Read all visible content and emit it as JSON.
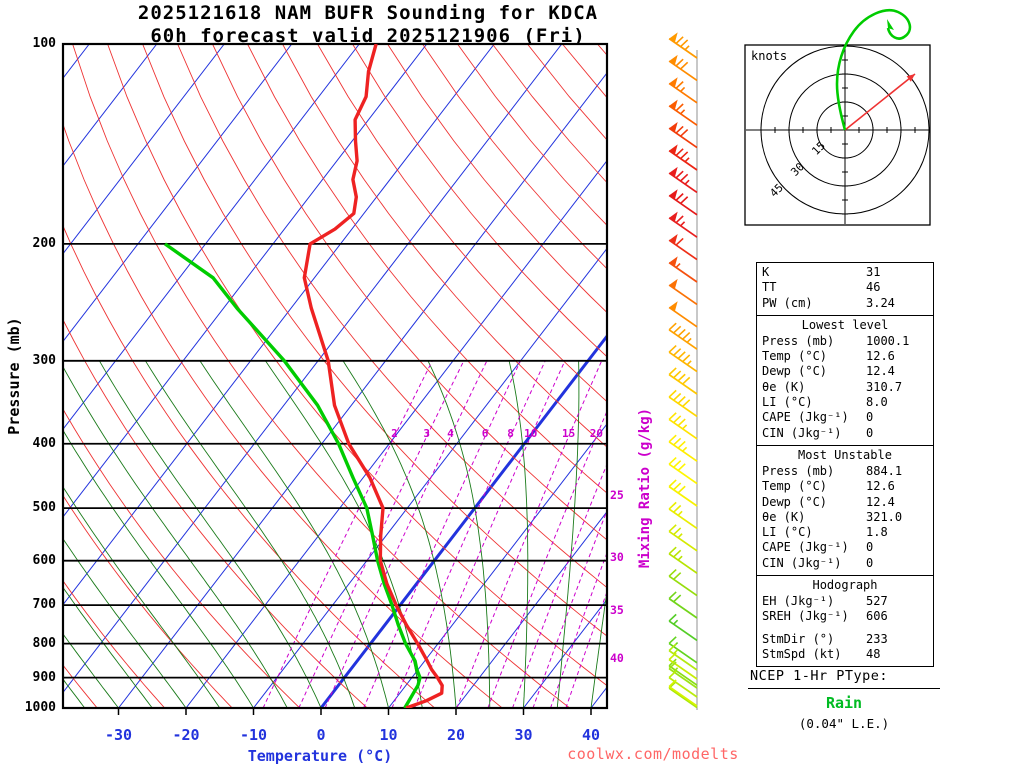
{
  "title": {
    "line1": "2025121618 NAM BUFR Sounding for KDCA",
    "line2": "60h forecast valid 2025121906 (Fri)"
  },
  "axes": {
    "pressure_label": "Pressure (mb)",
    "pressure_ticks": [
      100,
      200,
      300,
      400,
      500,
      600,
      700,
      800,
      900,
      1000
    ],
    "temp_label": "Temperature (°C)",
    "temp_ticks": [
      -30,
      -20,
      -10,
      0,
      10,
      20,
      30,
      40
    ],
    "mixing_ratio_label": "Mixing Ratio (g/kg)",
    "mixing_ratio_inline_labels": [
      2,
      3,
      4,
      6,
      8,
      10,
      15,
      20
    ],
    "mixing_ratio_right_labels": [
      25,
      30,
      35,
      40
    ]
  },
  "chart_data": {
    "type": "skewt_log_p_sounding",
    "title": "2025121618 NAM BUFR Sounding for KDCA — 60h forecast valid 2025121906 (Fri)",
    "xlabel": "Temperature (°C)",
    "ylabel": "Pressure (mb)",
    "x_range_c": [
      -40,
      45
    ],
    "p_range_mb": [
      100,
      1000
    ],
    "isotherm_step_c": 10,
    "mixing_ratio_lines_gkg": [
      2,
      3,
      4,
      6,
      8,
      10,
      15,
      20,
      25,
      30,
      35,
      40
    ],
    "levels_p_t_td": [
      [
        1000,
        12.6,
        12.4
      ],
      [
        975,
        14.8,
        12.2
      ],
      [
        950,
        16.2,
        12.0
      ],
      [
        925,
        15.4,
        11.8
      ],
      [
        900,
        13.8,
        11.2
      ],
      [
        875,
        12.0,
        9.8
      ],
      [
        850,
        10.4,
        8.6
      ],
      [
        800,
        7.0,
        5.2
      ],
      [
        750,
        3.2,
        2.0
      ],
      [
        700,
        -0.6,
        -1.2
      ],
      [
        650,
        -4.4,
        -4.8
      ],
      [
        600,
        -8.0,
        -8.4
      ],
      [
        550,
        -10.8,
        -12.0
      ],
      [
        500,
        -13.6,
        -16.0
      ],
      [
        450,
        -19.0,
        -21.5
      ],
      [
        400,
        -26.0,
        -27.5
      ],
      [
        350,
        -32.5,
        -35.0
      ],
      [
        300,
        -38.5,
        -45.0
      ],
      [
        250,
        -47.0,
        -58.0
      ],
      [
        225,
        -51.5,
        -65.0
      ],
      [
        200,
        -54.5,
        -76.0
      ],
      [
        190,
        -52.5,
        null
      ],
      [
        180,
        -51.5,
        null
      ],
      [
        170,
        -53.0,
        null
      ],
      [
        160,
        -55.5,
        null
      ],
      [
        150,
        -57.0,
        null
      ],
      [
        140,
        -59.5,
        null
      ],
      [
        130,
        -62.0,
        null
      ],
      [
        120,
        -63.0,
        null
      ],
      [
        110,
        -65.5,
        null
      ],
      [
        100,
        -67.5,
        null
      ]
    ],
    "wind_barbs": [
      [
        75,
        "#ff9a00"
      ],
      [
        70,
        "#ff8c00"
      ],
      [
        65,
        "#ff7b00"
      ],
      [
        65,
        "#fb5c00"
      ],
      [
        70,
        "#f23c0a"
      ],
      [
        75,
        "#ec2413"
      ],
      [
        75,
        "#e81c1c"
      ],
      [
        70,
        "#e61a1a"
      ],
      [
        65,
        "#e81e1e"
      ],
      [
        60,
        "#ee2f17"
      ],
      [
        55,
        "#f5500e"
      ],
      [
        50,
        "#fb7205"
      ],
      [
        50,
        "#ff8c00"
      ],
      [
        45,
        "#ffa200"
      ],
      [
        45,
        "#ffb600"
      ],
      [
        40,
        "#ffc800"
      ],
      [
        40,
        "#ffd800"
      ],
      [
        35,
        "#ffe400"
      ],
      [
        35,
        "#ffee00"
      ],
      [
        30,
        "#fff600"
      ],
      [
        30,
        "#f8f200"
      ],
      [
        25,
        "#e9ee00"
      ],
      [
        25,
        "#d4ea00"
      ],
      [
        25,
        "#b7e400"
      ],
      [
        20,
        "#96dd0c"
      ],
      [
        20,
        "#72d51a"
      ],
      [
        15,
        "#54cd26"
      ],
      [
        15,
        "#62d41e"
      ],
      [
        10,
        "#86de12"
      ],
      [
        10,
        "#a8e80a"
      ]
    ],
    "surface_wind_barbs": [
      [
        15,
        "#b4ea10"
      ],
      [
        10,
        "#c8ee06"
      ],
      [
        15,
        "#9ce414"
      ],
      [
        10,
        "#baec0c"
      ],
      [
        10,
        "#d6f400"
      ]
    ]
  },
  "hodograph": {
    "unit": "knots",
    "ring_labels": [
      15,
      30,
      45
    ],
    "storm_motion": {
      "dir_deg": 233,
      "spd_kt": 48
    }
  },
  "stats": {
    "summary": [
      [
        "K",
        "31"
      ],
      [
        "TT",
        "46"
      ],
      [
        "PW (cm)",
        "3.24"
      ]
    ],
    "sections": [
      {
        "heading": "Lowest level",
        "rows": [
          [
            "Press (mb)",
            "1000.1"
          ],
          [
            "Temp (°C)",
            "12.6"
          ],
          [
            "Dewp (°C)",
            "12.4"
          ],
          [
            "θe (K)",
            "310.7"
          ],
          [
            "LI (°C)",
            "8.0"
          ],
          [
            "CAPE (Jkg⁻¹)",
            "0"
          ],
          [
            "CIN (Jkg⁻¹)",
            "0"
          ]
        ]
      },
      {
        "heading": "Most Unstable",
        "rows": [
          [
            "Press (mb)",
            "884.1"
          ],
          [
            "Temp (°C)",
            "12.6"
          ],
          [
            "Dewp (°C)",
            "12.4"
          ],
          [
            "θe (K)",
            "321.0"
          ],
          [
            "LI (°C)",
            "1.8"
          ],
          [
            "CAPE (Jkg⁻¹)",
            "0"
          ],
          [
            "CIN (Jkg⁻¹)",
            "0"
          ]
        ]
      },
      {
        "heading": "Hodograph",
        "rows": [
          [
            "EH (Jkg⁻¹)",
            "527"
          ],
          [
            "SREH (Jkg⁻¹)",
            "606"
          ],
          [
            "StmDir (°)",
            "233"
          ],
          [
            "StmSpd (kt)",
            "48"
          ]
        ]
      }
    ]
  },
  "ptype": {
    "heading": "NCEP 1-Hr PType:",
    "value": "Rain",
    "detail": "(0.04\" L.E.)"
  },
  "watermark": "coolwx.com/modelts",
  "colors": {
    "isotherm": "#2233dd",
    "dry_adiabat": "#ee3333",
    "moist_adiabat": "#1a7a1a",
    "mixing_ratio": "#cc00cc",
    "temperature_trace": "#ee2222",
    "dewpoint_trace": "#00cc00",
    "axis_text_temp": "#2233dd",
    "ptype_value": "#00bb22",
    "watermark": "#ff6666",
    "storm_arrow": "#ee3333"
  }
}
